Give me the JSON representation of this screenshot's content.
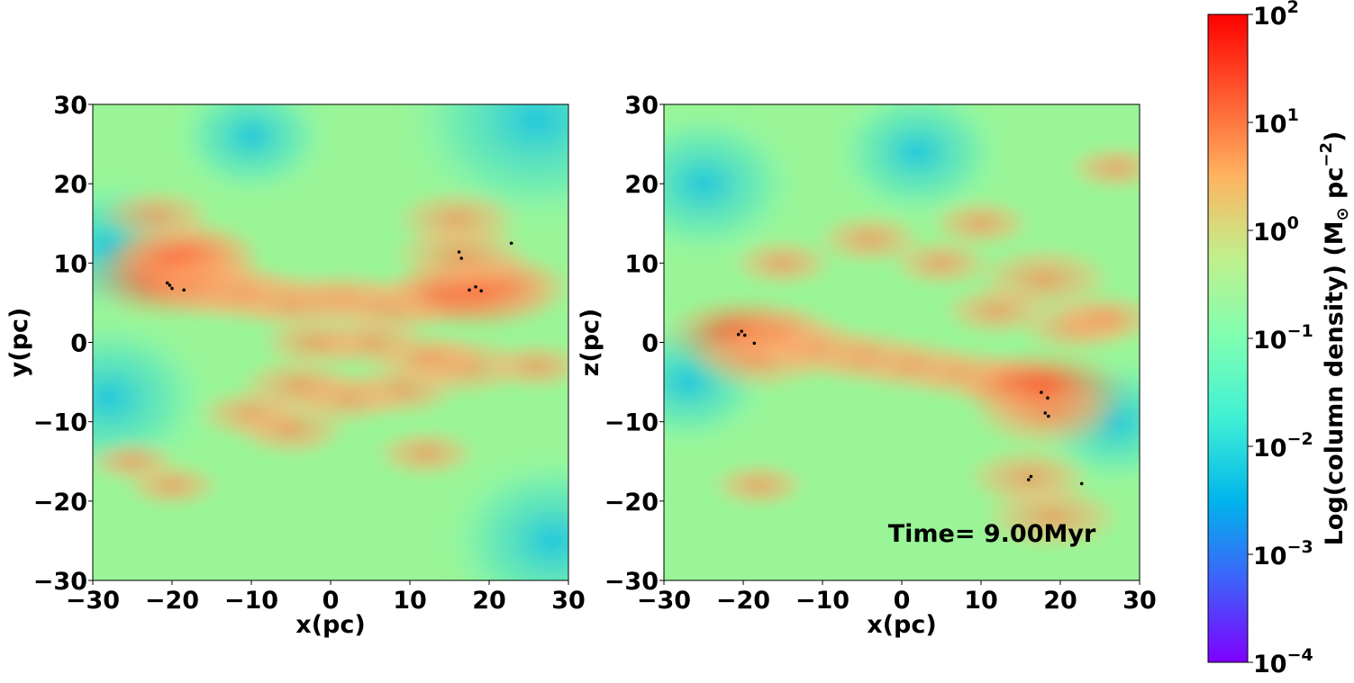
{
  "figure": {
    "time_label": "Time= 9.00Myr"
  },
  "colors": {
    "background_low": "#7fffb0",
    "background_mid": "#a8f08a",
    "dense": "#ff6a3d",
    "peak": "#ff1a00",
    "void": "#16c1e6",
    "star": "#000000",
    "colormap": [
      "#7f00ff",
      "#3f60fa",
      "#00b5eb",
      "#3ff0d5",
      "#7fffb2",
      "#c0f08c",
      "#ffb360",
      "#ff5a30",
      "#ff0000"
    ]
  },
  "chart_data": [
    {
      "type": "heatmap",
      "panel": "x-y projection",
      "xlabel": "x(pc)",
      "ylabel": "y(pc)",
      "xlim": [
        -30,
        30
      ],
      "ylim": [
        -30,
        30
      ],
      "xticks": [
        -30,
        -20,
        -10,
        0,
        10,
        20,
        30
      ],
      "yticks": [
        -30,
        -20,
        -10,
        0,
        10,
        20,
        30
      ],
      "tick_labels": [
        "−30",
        "−20",
        "−10",
        "0",
        "10",
        "20",
        "30"
      ],
      "filaments": [
        {
          "x": -20.5,
          "y": 8,
          "weight": 1.0
        },
        {
          "x": -19,
          "y": 10.5,
          "weight": 0.9
        },
        {
          "x": -18,
          "y": 11,
          "weight": 0.8
        },
        {
          "x": -22,
          "y": 16,
          "weight": 0.5
        },
        {
          "x": -15,
          "y": 7,
          "weight": 0.7
        },
        {
          "x": -10,
          "y": 6,
          "weight": 0.6
        },
        {
          "x": -4,
          "y": 5,
          "weight": 0.6
        },
        {
          "x": 2,
          "y": 5.5,
          "weight": 0.5
        },
        {
          "x": 8,
          "y": 4.5,
          "weight": 0.6
        },
        {
          "x": 14,
          "y": 6,
          "weight": 0.6
        },
        {
          "x": 18.5,
          "y": 6.5,
          "weight": 1.0
        },
        {
          "x": 22,
          "y": 7,
          "weight": 0.7
        },
        {
          "x": 16,
          "y": 15.5,
          "weight": 0.6
        },
        {
          "x": 16.5,
          "y": 11,
          "weight": 0.7
        },
        {
          "x": 17,
          "y": -3,
          "weight": 0.6
        },
        {
          "x": 12,
          "y": -2,
          "weight": 0.5
        },
        {
          "x": 5,
          "y": 0,
          "weight": 0.5
        },
        {
          "x": -2,
          "y": 0,
          "weight": 0.45
        },
        {
          "x": 9,
          "y": -6,
          "weight": 0.5
        },
        {
          "x": 2,
          "y": -7,
          "weight": 0.5
        },
        {
          "x": -4,
          "y": -5.5,
          "weight": 0.55
        },
        {
          "x": -10,
          "y": -9,
          "weight": 0.45
        },
        {
          "x": -5,
          "y": -11,
          "weight": 0.5
        },
        {
          "x": 12,
          "y": -14,
          "weight": 0.4
        },
        {
          "x": -20,
          "y": -18,
          "weight": 0.35
        },
        {
          "x": -25,
          "y": -15,
          "weight": 0.3
        },
        {
          "x": 26,
          "y": -3,
          "weight": 0.4
        }
      ],
      "voids": [
        {
          "x": 26,
          "y": 28,
          "weight": 1.0
        },
        {
          "x": 28,
          "y": -25,
          "weight": 0.7
        },
        {
          "x": -28,
          "y": -7,
          "weight": 0.6
        },
        {
          "x": -28,
          "y": 12,
          "weight": 0.4
        },
        {
          "x": -10,
          "y": 26,
          "weight": 0.3
        }
      ],
      "stars": [
        {
          "x": -20.6,
          "y": 7.5
        },
        {
          "x": -20.3,
          "y": 7.2
        },
        {
          "x": -20.0,
          "y": 6.8
        },
        {
          "x": -18.5,
          "y": 6.6
        },
        {
          "x": 16.2,
          "y": 11.4
        },
        {
          "x": 16.5,
          "y": 10.6
        },
        {
          "x": 17.5,
          "y": 6.6
        },
        {
          "x": 18.3,
          "y": 7.0
        },
        {
          "x": 19.0,
          "y": 6.5
        },
        {
          "x": 22.8,
          "y": 12.5
        }
      ]
    },
    {
      "type": "heatmap",
      "panel": "x-z projection",
      "xlabel": "x(pc)",
      "ylabel": "z(pc)",
      "xlim": [
        -30,
        30
      ],
      "ylim": [
        -30,
        30
      ],
      "xticks": [
        -30,
        -20,
        -10,
        0,
        10,
        20,
        30
      ],
      "yticks": [
        -30,
        -20,
        -10,
        0,
        10,
        20,
        30
      ],
      "tick_labels": [
        "−30",
        "−20",
        "−10",
        "0",
        "10",
        "20",
        "30"
      ],
      "filaments": [
        {
          "x": -20,
          "y": 1,
          "weight": 0.9
        },
        {
          "x": -18,
          "y": -2,
          "weight": 0.7
        },
        {
          "x": -15,
          "y": 1,
          "weight": 0.6
        },
        {
          "x": -10,
          "y": -1,
          "weight": 0.55
        },
        {
          "x": -4,
          "y": -2,
          "weight": 0.55
        },
        {
          "x": 2,
          "y": -3,
          "weight": 0.5
        },
        {
          "x": 8,
          "y": -4,
          "weight": 0.5
        },
        {
          "x": 14,
          "y": -5,
          "weight": 0.55
        },
        {
          "x": 18,
          "y": -6,
          "weight": 1.0
        },
        {
          "x": 18.5,
          "y": -9,
          "weight": 0.8
        },
        {
          "x": 18,
          "y": 8,
          "weight": 0.7
        },
        {
          "x": 22,
          "y": 2,
          "weight": 0.5
        },
        {
          "x": 26,
          "y": 3,
          "weight": 0.45
        },
        {
          "x": 12,
          "y": 4,
          "weight": 0.45
        },
        {
          "x": 5,
          "y": 10,
          "weight": 0.4
        },
        {
          "x": -4,
          "y": 13,
          "weight": 0.45
        },
        {
          "x": -15,
          "y": 10,
          "weight": 0.4
        },
        {
          "x": 10,
          "y": 15,
          "weight": 0.4
        },
        {
          "x": 16,
          "y": -17,
          "weight": 0.6
        },
        {
          "x": 19,
          "y": -22,
          "weight": 0.7
        },
        {
          "x": -18,
          "y": -18,
          "weight": 0.35
        },
        {
          "x": 27,
          "y": 22,
          "weight": 0.35
        }
      ],
      "voids": [
        {
          "x": -25,
          "y": 20,
          "weight": 0.5
        },
        {
          "x": 2,
          "y": 24,
          "weight": 0.4
        },
        {
          "x": 27,
          "y": -10,
          "weight": 0.35
        },
        {
          "x": -27,
          "y": -5,
          "weight": 0.35
        }
      ],
      "stars": [
        {
          "x": -20.6,
          "y": 1.0
        },
        {
          "x": -20.2,
          "y": 1.4
        },
        {
          "x": -19.8,
          "y": 0.9
        },
        {
          "x": -18.6,
          "y": -0.1
        },
        {
          "x": 17.6,
          "y": -6.3
        },
        {
          "x": 18.4,
          "y": -7.0
        },
        {
          "x": 18.1,
          "y": -8.9
        },
        {
          "x": 18.5,
          "y": -9.3
        },
        {
          "x": 16.3,
          "y": -16.9
        },
        {
          "x": 16.0,
          "y": -17.3
        },
        {
          "x": 22.7,
          "y": -17.8
        }
      ]
    }
  ],
  "colorbar": {
    "label": "Log(column density) (M",
    "label_sub": "⊙",
    "label_tail": " pc",
    "label_sup": "−2",
    "label_close": ")",
    "min": 0.0001,
    "max": 100,
    "scale": "log",
    "ticks": [
      {
        "base": "10",
        "exp": "2"
      },
      {
        "base": "10",
        "exp": "1"
      },
      {
        "base": "10",
        "exp": "0"
      },
      {
        "base": "10",
        "exp": "−1"
      },
      {
        "base": "10",
        "exp": "−2"
      },
      {
        "base": "10",
        "exp": "−3"
      },
      {
        "base": "10",
        "exp": "−4"
      }
    ]
  }
}
